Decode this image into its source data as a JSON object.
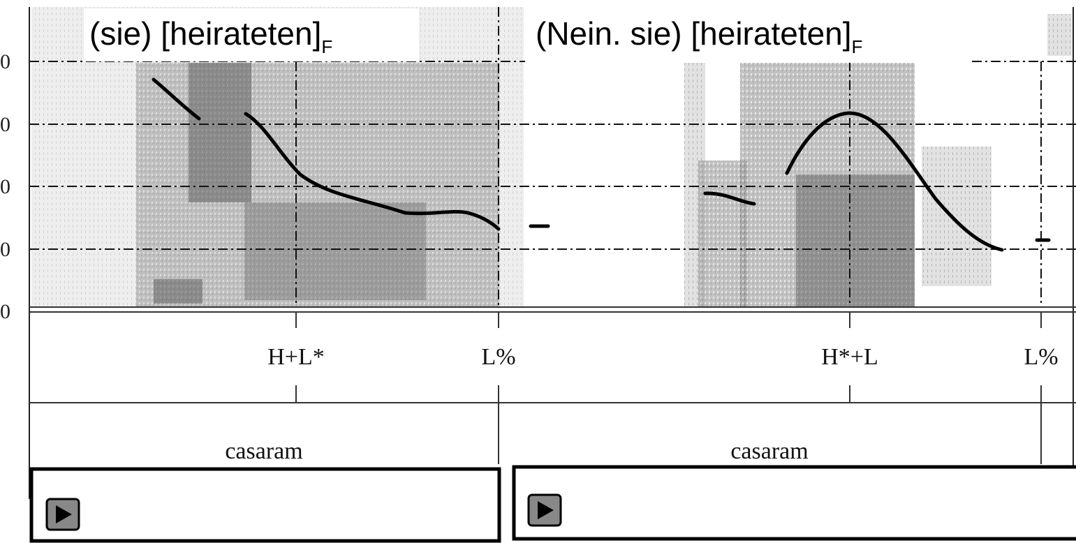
{
  "panels": [
    {
      "title": "(sie) [heirateten]",
      "title_subscript": "F",
      "tones": [
        "H+L*",
        "L%"
      ],
      "word": "casaram"
    },
    {
      "title": "(Nein. sie) [heirateten]",
      "title_subscript": "F",
      "tones": [
        "H*+L",
        "L%"
      ],
      "word": "casaram"
    }
  ],
  "y_axis_labels": [
    "0",
    "0",
    "0",
    "0",
    "0"
  ]
}
